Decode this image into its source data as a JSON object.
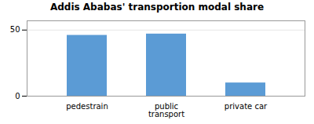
{
  "chart_data": {
    "type": "bar",
    "title": "Addis Ababas' transportion modal share",
    "categories": [
      "pedestrain",
      "public\ntransport",
      "private car"
    ],
    "values": [
      46,
      47,
      10
    ],
    "color": "#5B9BD5",
    "ylim": [
      0,
      57
    ],
    "yticks": [
      0,
      50
    ],
    "grid": true
  }
}
